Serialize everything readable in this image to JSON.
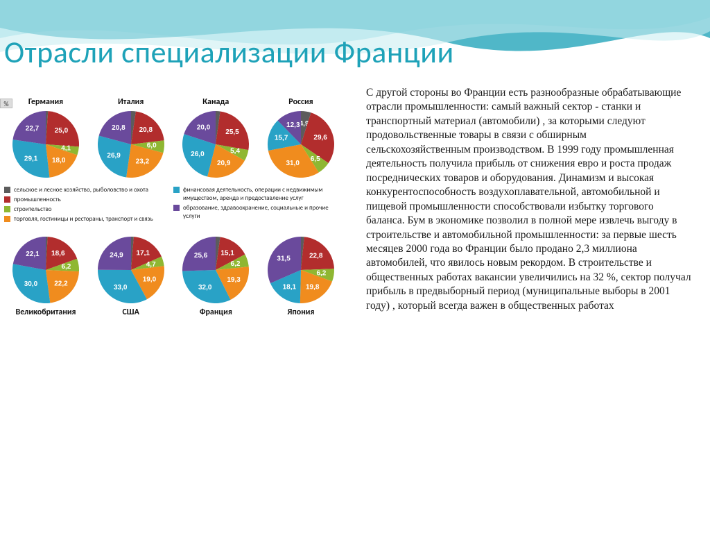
{
  "title": {
    "text": "Отрасли специализации Франции",
    "color": "#1ea2b8"
  },
  "y_badge": "%",
  "palette": {
    "agriculture": "#5c5c5c",
    "industry": "#b22d2d",
    "construction": "#8fb732",
    "trade": "#f08c1e",
    "finance": "#29a2c6",
    "education": "#6a4a9c"
  },
  "sector_order": [
    "agriculture",
    "industry",
    "construction",
    "trade",
    "finance",
    "education"
  ],
  "legend_cols": [
    [
      {
        "color": "#5c5c5c",
        "label": "сельское и лесное хозяйство, рыболовство и охота"
      },
      {
        "color": "#b22d2d",
        "label": "промышленность"
      },
      {
        "color": "#8fb732",
        "label": "строительство"
      },
      {
        "color": "#f08c1e",
        "label": "торговля, гостиницы и рестораны, транспорт и связь"
      }
    ],
    [
      {
        "color": "#29a2c6",
        "label": "финансовая деятельность, операции\nс недвижимым имуществом, аренда и предоставление услуг"
      },
      {
        "color": "#6a4a9c",
        "label": "образование, здравоохранение, социальные и прочие услуги"
      }
    ]
  ],
  "rows": [
    {
      "title_pos": "top",
      "pies": [
        {
          "title": "Германия",
          "values": {
            "agriculture": 1.1,
            "industry": 25.0,
            "construction": 4.1,
            "trade": 18.0,
            "finance": 29.1,
            "education": 22.7
          }
        },
        {
          "title": "Италия",
          "values": {
            "agriculture": 2.3,
            "industry": 20.8,
            "construction": 6.0,
            "trade": 23.2,
            "finance": 26.9,
            "education": 20.8
          }
        },
        {
          "title": "Канада",
          "values": {
            "agriculture": 2.2,
            "industry": 25.5,
            "construction": 5.4,
            "trade": 20.9,
            "finance": 26.0,
            "education": 20.0
          }
        },
        {
          "title": "Россия",
          "values": {
            "agriculture": 4.9,
            "industry": 29.6,
            "construction": 6.5,
            "trade": 31.0,
            "finance": 15.7,
            "education": 12.3
          }
        }
      ]
    },
    {
      "title_pos": "bottom",
      "pies": [
        {
          "title": "Великобритания",
          "values": {
            "agriculture": 0.9,
            "industry": 18.6,
            "construction": 6.2,
            "trade": 22.2,
            "finance": 30.0,
            "education": 22.1
          }
        },
        {
          "title": "США",
          "values": {
            "agriculture": 1.3,
            "industry": 17.1,
            "construction": 4.7,
            "trade": 19.0,
            "finance": 33.0,
            "education": 24.9
          }
        },
        {
          "title": "Франция",
          "values": {
            "agriculture": 2.2,
            "industry": 15.1,
            "construction": 6.2,
            "trade": 19.3,
            "finance": 32.0,
            "education": 25.6
          }
        },
        {
          "title": "Япония",
          "values": {
            "agriculture": 1.6,
            "industry": 22.8,
            "construction": 6.2,
            "trade": 19.8,
            "finance": 18.1,
            "education": 31.5
          }
        }
      ]
    }
  ],
  "pie_style": {
    "radius": 48,
    "label_radius_factor": 0.62,
    "label_fontsize": 10,
    "label_color": "#ffffff",
    "start_angle_deg": -90,
    "min_label_value": 3.5
  },
  "paragraph": "С другой стороны во Франции есть разнообразные обрабатывающие отрасли промышленности: самый важный сектор - станки и транспортный материал (автомобили) , за которыми следуют продовольственные товары в связи с обширным сельскохозяйственным производством. В 1999 году промышленная деятельность получила прибыль от снижения евро и роста продаж посреднических товаров и оборудования. Динамизм и высокая конкурентоспособность воздухоплавательной, автомобильной и пищевой промышленности способствовали избытку торгового баланса. Бум в экономике позволил в полной мере извлечь выгоду в строительстве и автомобильной промышленности: за первые шесть месяцев 2000 года во Франции было продано 2,3 миллиона автомобилей, что явилось новым рекордом. В строительстве и общественных работах вакансии увеличились на 32 %, сектор получал прибыль в предвыборный период (муниципальные выборы в 2001 году) , который всегда важен в общественных работах",
  "paragraph_style": {
    "color": "#1a1a1a",
    "fontsize": 15.5
  },
  "wave": {
    "colors": [
      "#7ad1e0",
      "#159fb5",
      "#cceef2"
    ],
    "opacity": [
      0.55,
      0.75,
      0.6
    ]
  }
}
